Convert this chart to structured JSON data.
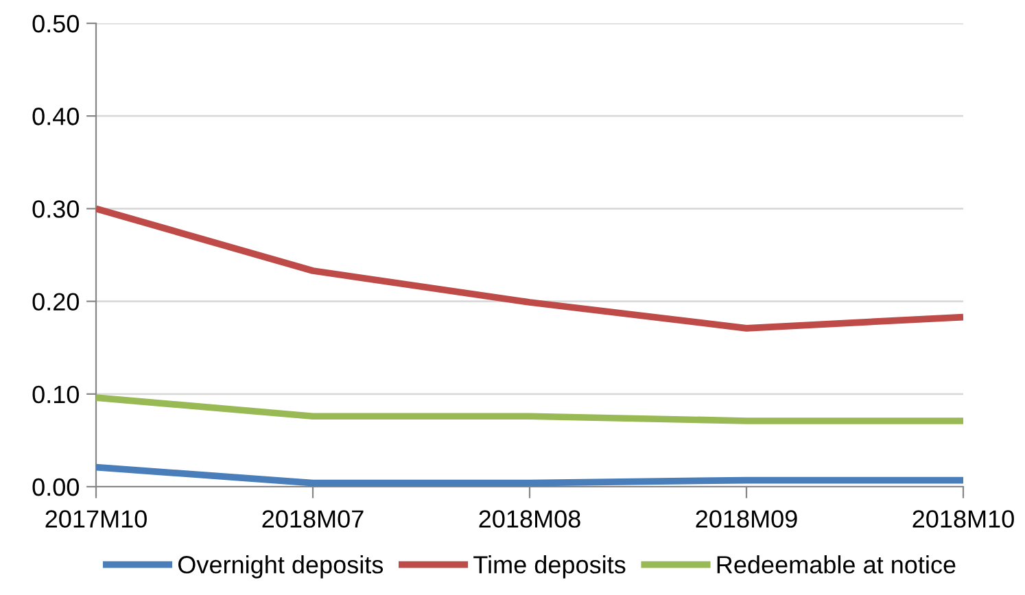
{
  "chart_data": {
    "type": "line",
    "categories": [
      "2017M10",
      "2018M07",
      "2018M08",
      "2018M09",
      "2018M10"
    ],
    "series": [
      {
        "name": "Overnight deposits",
        "color": "#4a7ebb",
        "values": [
          0.021,
          0.004,
          0.004,
          0.007,
          0.007
        ]
      },
      {
        "name": "Time deposits",
        "color": "#be4b48",
        "values": [
          0.3,
          0.233,
          0.199,
          0.171,
          0.183
        ]
      },
      {
        "name": "Redeemable at notice",
        "color": "#98b954",
        "values": [
          0.096,
          0.076,
          0.076,
          0.071,
          0.071
        ]
      }
    ],
    "ylim": [
      0,
      0.5
    ],
    "yticks": [
      {
        "value": 0,
        "label": "0.00"
      },
      {
        "value": 0.1,
        "label": "0.10"
      },
      {
        "value": 0.2,
        "label": "0.20"
      },
      {
        "value": 0.3,
        "label": "0.30"
      },
      {
        "value": 0.4,
        "label": "0.40"
      },
      {
        "value": 0.5,
        "label": "0.50"
      }
    ],
    "grid": "y",
    "legend": "bottom",
    "marker": "none",
    "line_style": "solid"
  }
}
